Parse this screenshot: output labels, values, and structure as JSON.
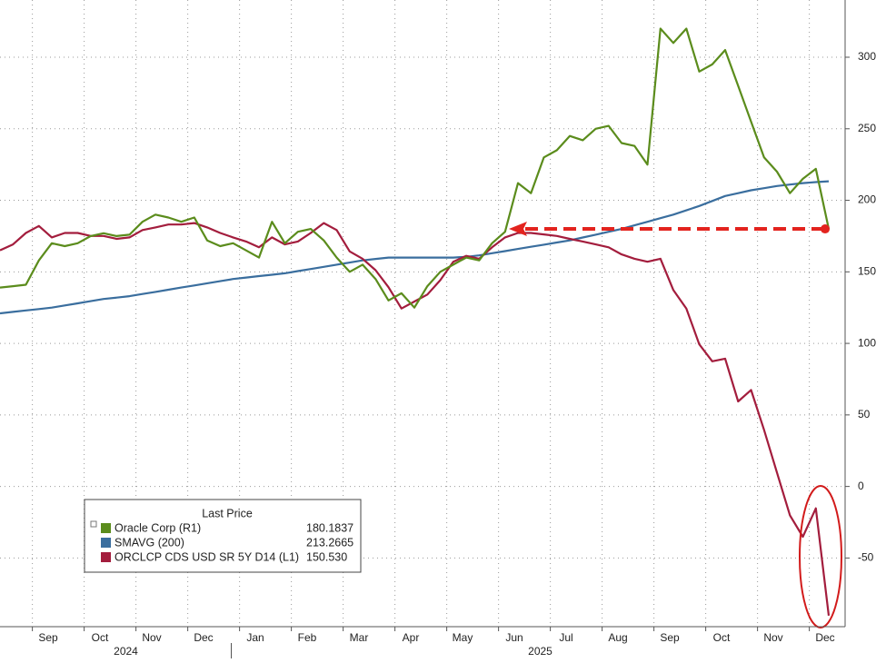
{
  "chart_data": {
    "type": "line",
    "categories": [
      null,
      null,
      null,
      null,
      "Sep",
      null,
      null,
      null,
      "Oct",
      null,
      null,
      null,
      "Nov",
      null,
      null,
      null,
      "Dec",
      null,
      null,
      null,
      "Jan",
      null,
      null,
      null,
      "Feb",
      null,
      null,
      null,
      "Mar",
      null,
      null,
      null,
      "Apr",
      null,
      null,
      null,
      "May",
      null,
      null,
      null,
      "Jun",
      null,
      null,
      null,
      "Jul",
      null,
      null,
      null,
      "Aug",
      null,
      null,
      null,
      "Sep",
      null,
      null,
      null,
      "Oct",
      null,
      null,
      null,
      "Nov",
      null,
      null,
      null,
      "Dec"
    ],
    "years": [
      "2024",
      "2025"
    ],
    "ylim": [
      -98,
      340
    ],
    "yticks": [
      -50,
      0,
      50,
      100,
      150,
      200,
      250,
      300
    ],
    "y2lim": [
      153.5,
      -16.5
    ],
    "grid": true,
    "legend_title": "Last Price",
    "series": [
      {
        "name": "Oracle Corp  (R1)",
        "color": "#5b8c1c",
        "last_price": 180.1837,
        "values": [
          139,
          140,
          141,
          158,
          170,
          168,
          170,
          175,
          177,
          175,
          176,
          185,
          190,
          188,
          185,
          188,
          172,
          168,
          170,
          165,
          160,
          185,
          170,
          178,
          180,
          172,
          160,
          150,
          155,
          145,
          130,
          135,
          125,
          140,
          150,
          155,
          160,
          158,
          170,
          178,
          212,
          205,
          230,
          235,
          245,
          242,
          250,
          252,
          240,
          238,
          225,
          320,
          310,
          320,
          290,
          295,
          305,
          280,
          255,
          230,
          220,
          205,
          215,
          222,
          180
        ]
      },
      {
        "name": "SMAVG (200)",
        "color": "#3a6e9e",
        "last_price": 213.2665,
        "values": [
          121,
          122,
          123,
          124,
          125,
          126.5,
          128,
          129.5,
          131,
          132,
          133,
          134.5,
          136,
          137.5,
          139,
          140.5,
          142,
          143.5,
          145,
          146,
          147,
          148,
          149,
          150.5,
          152,
          153.5,
          155,
          156.5,
          158,
          159,
          160,
          160,
          160,
          160,
          160,
          160,
          160.5,
          161.5,
          163,
          164.5,
          166,
          167.5,
          169,
          170.5,
          172,
          174,
          176,
          178,
          180,
          182.5,
          185,
          187.5,
          190,
          193,
          196,
          199.5,
          203,
          205,
          207,
          208.5,
          210,
          211,
          212,
          212.7,
          213.2665
        ]
      },
      {
        "name": "ORCLCP CDS USD SR 5Y D14  (L1)",
        "color": "#a31d3d",
        "axis": "y2",
        "last_price": {
          "value": 150.53,
          "label": "150.530"
        },
        "values": [
          51.4,
          49.8,
          46.7,
          44.8,
          47.9,
          46.7,
          46.7,
          47.5,
          47.5,
          48.3,
          47.9,
          45.9,
          45.2,
          44.4,
          44.4,
          44.0,
          45.2,
          46.7,
          47.9,
          49.0,
          50.6,
          47.9,
          49.8,
          49.0,
          46.7,
          44.0,
          45.9,
          51.7,
          53.7,
          56.8,
          61.4,
          67.2,
          65.3,
          63.4,
          59.5,
          54.5,
          52.9,
          53.7,
          50.6,
          47.9,
          46.7,
          46.7,
          47.1,
          47.5,
          48.3,
          49.0,
          49.8,
          50.6,
          52.5,
          53.7,
          54.5,
          53.7,
          62.2,
          67.2,
          76.9,
          81.5,
          80.8,
          92.4,
          89.3,
          100.1,
          111.7,
          123.3,
          129.1,
          121.4,
          150.53
        ]
      }
    ]
  }
}
